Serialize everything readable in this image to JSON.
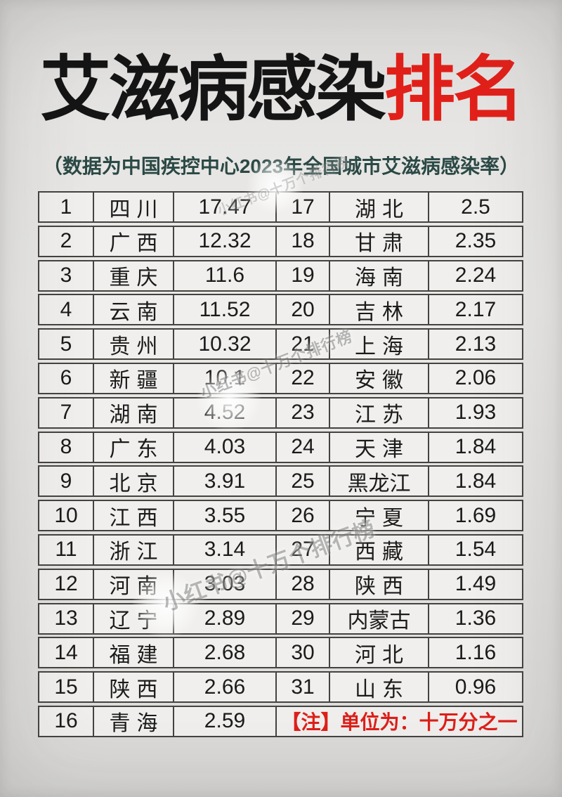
{
  "title": {
    "black": "艾滋病感染",
    "red": "排名"
  },
  "subtitle": "（数据为中国疾控中心2023年全国城市艾滋病感染率）",
  "watermark": "小红书@十万个排行榜",
  "colors": {
    "accent_red": "#e2201a",
    "note_red": "#de1f1a",
    "subtitle_green": "#2b4945",
    "table_border": "#454340",
    "cell_bg": "#f0efed",
    "text": "#1b1b1b",
    "page_bg": "#e3e2e0"
  },
  "chart_data": {
    "type": "table",
    "title": "艾滋病感染排名",
    "subtitle": "（数据为中国疾控中心2023年全国城市艾滋病感染率）",
    "unit_note": "【注】单位为：十万分之一",
    "layout": "two-column table, ranks 1-16 left, 17-31 right, note cell bottom-right",
    "rows": [
      {
        "rank": "1",
        "province": "四川",
        "value": "17.47"
      },
      {
        "rank": "2",
        "province": "广西",
        "value": "12.32"
      },
      {
        "rank": "3",
        "province": "重庆",
        "value": "11.6"
      },
      {
        "rank": "4",
        "province": "云南",
        "value": "11.52"
      },
      {
        "rank": "5",
        "province": "贵州",
        "value": "10.32"
      },
      {
        "rank": "6",
        "province": "新疆",
        "value": "10.1"
      },
      {
        "rank": "7",
        "province": "湖南",
        "value": "4.52"
      },
      {
        "rank": "8",
        "province": "广东",
        "value": "4.03"
      },
      {
        "rank": "9",
        "province": "北京",
        "value": "3.91"
      },
      {
        "rank": "10",
        "province": "江西",
        "value": "3.55"
      },
      {
        "rank": "11",
        "province": "浙江",
        "value": "3.14"
      },
      {
        "rank": "12",
        "province": "河南",
        "value": "3.03"
      },
      {
        "rank": "13",
        "province": "辽宁",
        "value": "2.89"
      },
      {
        "rank": "14",
        "province": "福建",
        "value": "2.68"
      },
      {
        "rank": "15",
        "province": "陕西",
        "value": "2.66"
      },
      {
        "rank": "16",
        "province": "青海",
        "value": "2.59"
      },
      {
        "rank": "17",
        "province": "湖北",
        "value": "2.5"
      },
      {
        "rank": "18",
        "province": "甘肃",
        "value": "2.35"
      },
      {
        "rank": "19",
        "province": "海南",
        "value": "2.24"
      },
      {
        "rank": "20",
        "province": "吉林",
        "value": "2.17"
      },
      {
        "rank": "21",
        "province": "上海",
        "value": "2.13"
      },
      {
        "rank": "22",
        "province": "安徽",
        "value": "2.06"
      },
      {
        "rank": "23",
        "province": "江苏",
        "value": "1.93"
      },
      {
        "rank": "24",
        "province": "天津",
        "value": "1.84"
      },
      {
        "rank": "25",
        "province": "黑龙江",
        "value": "1.84"
      },
      {
        "rank": "26",
        "province": "宁夏",
        "value": "1.69"
      },
      {
        "rank": "27",
        "province": "西藏",
        "value": "1.54"
      },
      {
        "rank": "28",
        "province": "陕西",
        "value": "1.49"
      },
      {
        "rank": "29",
        "province": "内蒙古",
        "value": "1.36"
      },
      {
        "rank": "30",
        "province": "河北",
        "value": "1.16"
      },
      {
        "rank": "31",
        "province": "山东",
        "value": "0.96"
      }
    ]
  }
}
